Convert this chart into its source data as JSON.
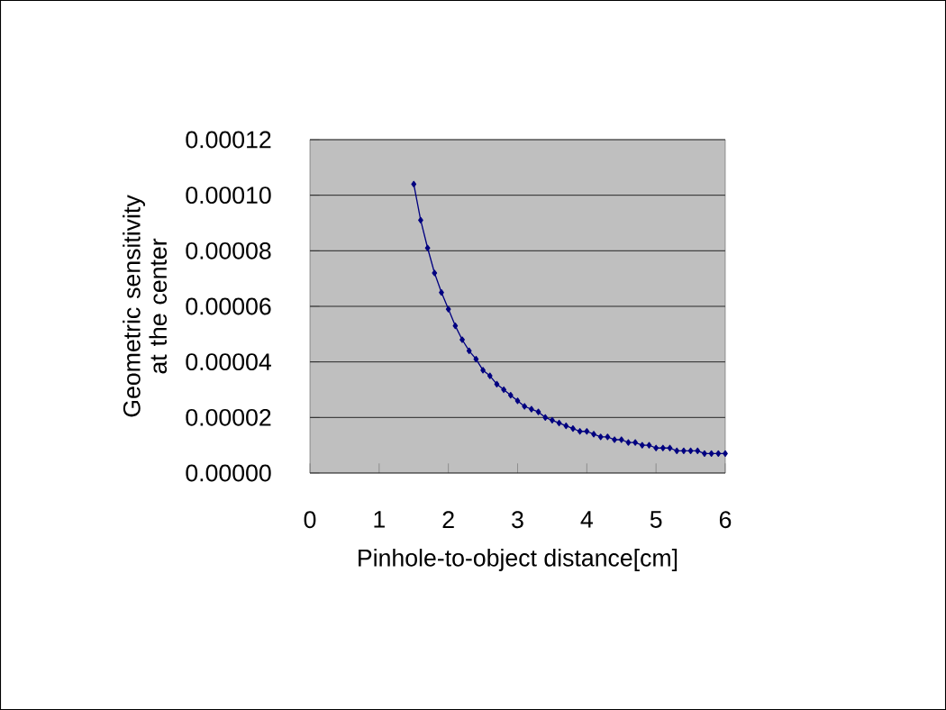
{
  "chart_data": {
    "type": "line",
    "xlabel": "Pinhole-to-object distance[cm]",
    "ylabel": "Geometric sensitivity at the center",
    "x": [
      1.5,
      1.6,
      1.7,
      1.8,
      1.9,
      2.0,
      2.1,
      2.2,
      2.3,
      2.4,
      2.5,
      2.6,
      2.7,
      2.8,
      2.9,
      3.0,
      3.1,
      3.2,
      3.3,
      3.4,
      3.5,
      3.6,
      3.7,
      3.8,
      3.9,
      4.0,
      4.1,
      4.2,
      4.3,
      4.4,
      4.5,
      4.6,
      4.7,
      4.8,
      4.9,
      5.0,
      5.1,
      5.2,
      5.3,
      5.4,
      5.5,
      5.6,
      5.7,
      5.8,
      5.9,
      6.0
    ],
    "values": [
      0.000104,
      9.1e-05,
      8.1e-05,
      7.2e-05,
      6.5e-05,
      5.9e-05,
      5.3e-05,
      4.8e-05,
      4.4e-05,
      4.1e-05,
      3.7e-05,
      3.5e-05,
      3.2e-05,
      3e-05,
      2.8e-05,
      2.6e-05,
      2.4e-05,
      2.3e-05,
      2.2e-05,
      2e-05,
      1.9e-05,
      1.8e-05,
      1.7e-05,
      1.6e-05,
      1.5e-05,
      1.5e-05,
      1.4e-05,
      1.3e-05,
      1.3e-05,
      1.2e-05,
      1.2e-05,
      1.1e-05,
      1.1e-05,
      1e-05,
      1e-05,
      9e-06,
      9e-06,
      9e-06,
      8e-06,
      8e-06,
      8e-06,
      8e-06,
      7e-06,
      7e-06,
      7e-06,
      7e-06
    ],
    "color": "#000080",
    "marker": "diamond",
    "line_style": "solid",
    "grid": "y",
    "xlim": [
      0,
      6
    ],
    "xticks": [
      0,
      1,
      2,
      3,
      4,
      5,
      6
    ],
    "ylim": [
      0,
      0.00012
    ],
    "yticks": [
      {
        "value": 0,
        "label": "0.00000"
      },
      {
        "value": 2e-05,
        "label": "0.00002"
      },
      {
        "value": 4e-05,
        "label": "0.00004"
      },
      {
        "value": 6e-05,
        "label": "0.00006"
      },
      {
        "value": 8e-05,
        "label": "0.00008"
      },
      {
        "value": 0.0001,
        "label": "0.00010"
      },
      {
        "value": 0.00012,
        "label": "0.00012"
      }
    ]
  }
}
